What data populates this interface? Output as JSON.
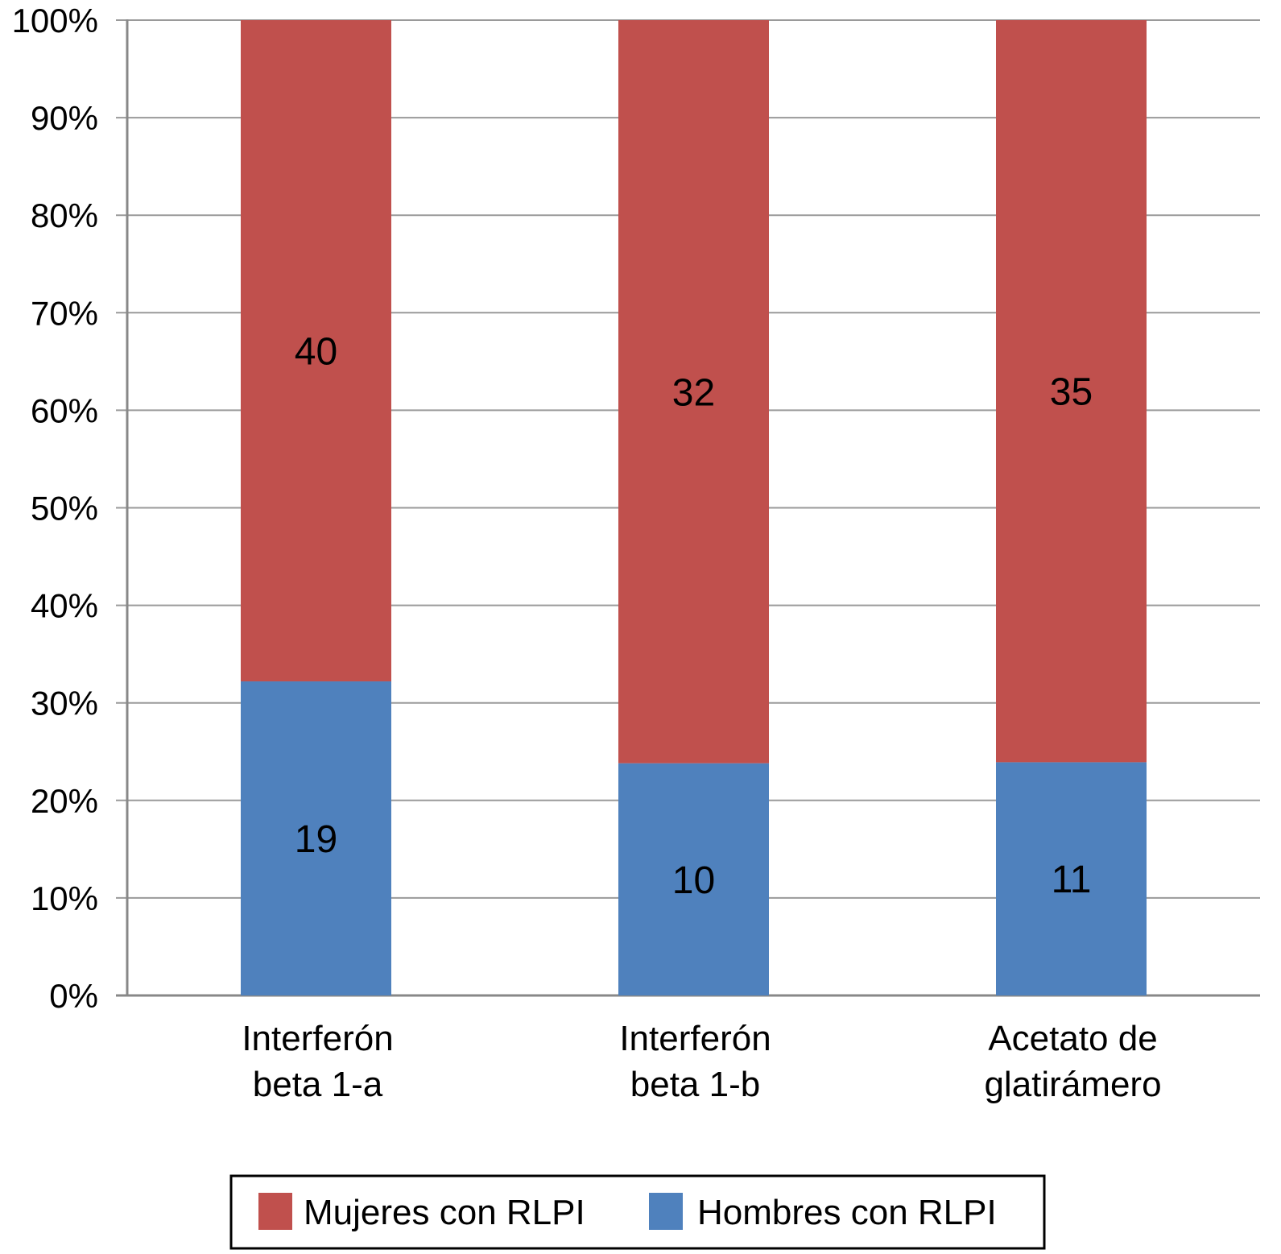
{
  "chart_data": {
    "type": "bar",
    "stacked": "percent",
    "title": "",
    "xlabel": "",
    "ylabel": "",
    "ylim": [
      0,
      100
    ],
    "yticks": [
      "0%",
      "10%",
      "20%",
      "30%",
      "40%",
      "50%",
      "60%",
      "70%",
      "80%",
      "90%",
      "100%"
    ],
    "grid": true,
    "legend_position": "bottom",
    "categories": [
      [
        "Interferón",
        "beta 1-a"
      ],
      [
        "Interferón",
        "beta 1-b"
      ],
      [
        "Acetato de",
        "glatirámero"
      ]
    ],
    "series": [
      {
        "name": "Hombres con RLPI",
        "color": "#4F81BD",
        "values": [
          19,
          10,
          11
        ],
        "labels": [
          "19",
          "10",
          "11"
        ]
      },
      {
        "name": "Mujeres con RLPI",
        "color": "#C0504D",
        "values": [
          40,
          32,
          35
        ],
        "labels": [
          "40",
          "32",
          "35"
        ]
      }
    ],
    "legend_order": [
      "Mujeres con RLPI",
      "Hombres con RLPI"
    ]
  }
}
